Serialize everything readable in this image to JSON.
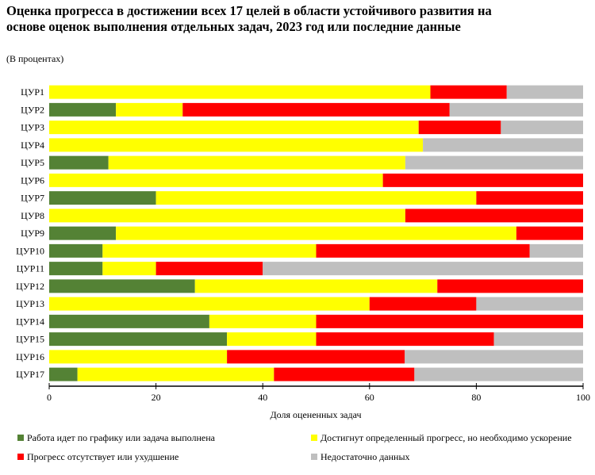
{
  "chart_data": {
    "type": "bar",
    "orientation": "horizontal",
    "stacked": true,
    "title": "Оценка прогресса в достижении всех 17 целей в области устойчивого развития на основе оценок выполнения отдельных задач, 2023 год или последние данные",
    "subtitle": "(В процентах)",
    "xlabel": "Доля оцененных задач",
    "ylabel": "",
    "xlim": [
      0,
      100
    ],
    "xticks": [
      "0",
      "20",
      "40",
      "60",
      "80",
      "100"
    ],
    "grid": false,
    "legend_position": "bottom",
    "categories": [
      "ЦУР1",
      "ЦУР2",
      "ЦУР3",
      "ЦУР4",
      "ЦУР5",
      "ЦУР6",
      "ЦУР7",
      "ЦУР8",
      "ЦУР9",
      "ЦУР10",
      "ЦУР11",
      "ЦУР12",
      "ЦУР13",
      "ЦУР14",
      "ЦУР15",
      "ЦУР16",
      "ЦУР17"
    ],
    "series": [
      {
        "name": "Работа идет по графику или задача выполнена",
        "color": "#548235",
        "values": [
          0,
          12.5,
          0,
          0,
          11.1,
          0,
          20,
          0,
          12.5,
          10,
          10,
          27.3,
          0,
          30,
          33.3,
          0,
          5.3
        ]
      },
      {
        "name": "Достигнут определенный прогресс, но необходимо ускорение",
        "color": "#ffff00",
        "values": [
          71.4,
          12.5,
          69.2,
          70,
          55.6,
          62.5,
          60,
          66.7,
          75,
          40,
          10,
          45.4,
          60,
          20,
          16.7,
          33.3,
          36.8
        ]
      },
      {
        "name": "Прогресс отсутствует или ухудшение",
        "color": "#ff0000",
        "values": [
          14.3,
          50,
          15.4,
          0,
          0,
          37.5,
          20,
          33.3,
          12.5,
          40,
          20,
          27.3,
          20,
          50,
          33.3,
          33.3,
          26.3
        ]
      },
      {
        "name": "Недостаточно данных",
        "color": "#bfbfbf",
        "values": [
          14.3,
          25,
          15.4,
          30,
          33.3,
          0,
          0,
          0,
          0,
          10,
          60,
          0,
          20,
          0,
          16.7,
          33.4,
          31.6
        ]
      }
    ]
  }
}
